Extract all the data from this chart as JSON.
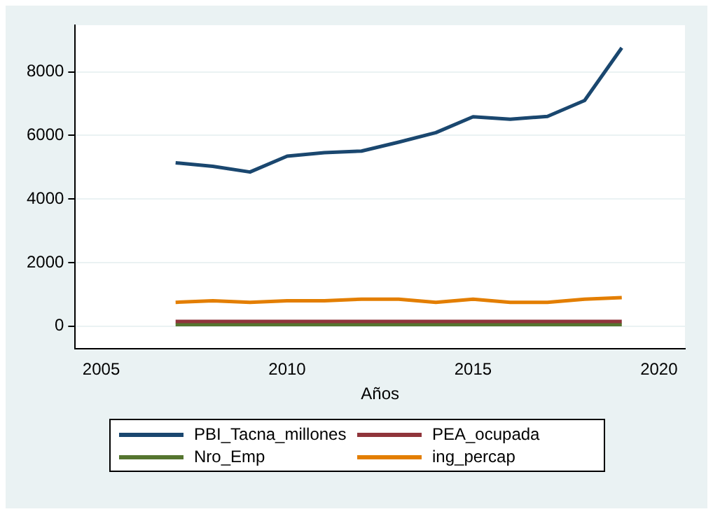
{
  "chart_data": {
    "type": "line",
    "xlabel": "Años",
    "x": [
      2007,
      2008,
      2009,
      2010,
      2011,
      2012,
      2013,
      2014,
      2015,
      2016,
      2017,
      2018,
      2019
    ],
    "series": [
      {
        "name": "PBI_Tacna_millones",
        "color": "#1a476f",
        "values": [
          5140,
          5030,
          4850,
          5350,
          5460,
          5510,
          5790,
          6090,
          6590,
          6510,
          6600,
          7100,
          8760
        ]
      },
      {
        "name": "PEA_ocupada",
        "color": "#90353b",
        "values": [
          150,
          150,
          150,
          150,
          150,
          150,
          150,
          150,
          150,
          150,
          150,
          150,
          150
        ]
      },
      {
        "name": "Nro_Emp",
        "color": "#55752f",
        "values": [
          50,
          50,
          50,
          50,
          50,
          50,
          50,
          50,
          50,
          50,
          50,
          50,
          50
        ]
      },
      {
        "name": "ing_percap",
        "color": "#e37e00",
        "values": [
          750,
          800,
          750,
          800,
          800,
          850,
          850,
          750,
          850,
          750,
          750,
          850,
          900
        ]
      }
    ],
    "xlim": [
      2004.3,
      2020.7
    ],
    "xticks": [
      2005,
      2010,
      2015,
      2020
    ],
    "ylim": [
      -720,
      9470
    ],
    "yticks": [
      0,
      2000,
      4000,
      6000,
      8000
    ],
    "grid": "y",
    "legend": "bottom",
    "marker": "none",
    "line_style": "solid"
  }
}
